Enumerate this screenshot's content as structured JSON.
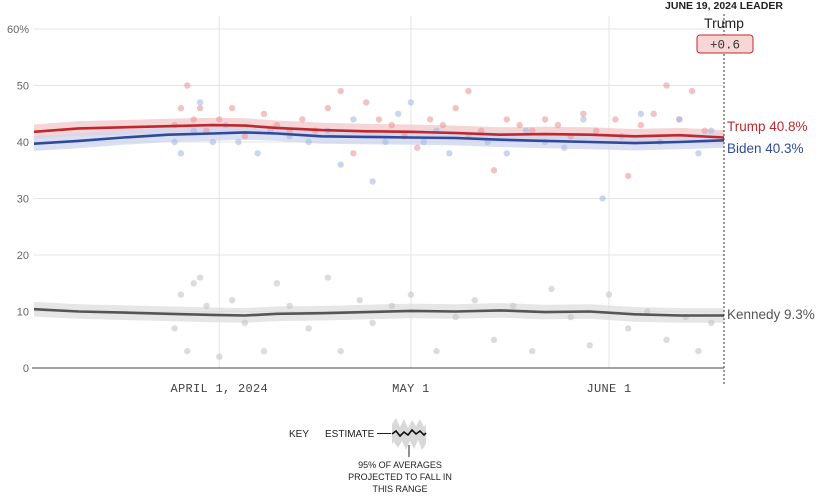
{
  "chart_data": {
    "type": "line",
    "ylim": [
      0,
      60
    ],
    "y_ticks": [
      0,
      10,
      20,
      30,
      40,
      50,
      60
    ],
    "y_tick_labels": [
      "0",
      "10",
      "20",
      "30",
      "40",
      "50",
      "60%"
    ],
    "x_range": [
      "2024-03-03",
      "2024-06-19"
    ],
    "x_ticks": [
      {
        "date": "2024-04-01",
        "label": "APRIL 1, 2024"
      },
      {
        "date": "2024-05-01",
        "label": "MAY 1"
      },
      {
        "date": "2024-06-01",
        "label": "JUNE 1"
      }
    ],
    "grid": true,
    "series": [
      {
        "name": "Trump",
        "end_label": "Trump 40.8%",
        "color": "#c0282d",
        "band_color": "#f2c7c8",
        "dot_color": "#e99a9c",
        "x": [
          "2024-03-03",
          "2024-03-10",
          "2024-03-17",
          "2024-03-24",
          "2024-03-31",
          "2024-04-05",
          "2024-04-10",
          "2024-04-17",
          "2024-04-24",
          "2024-05-01",
          "2024-05-08",
          "2024-05-15",
          "2024-05-22",
          "2024-05-29",
          "2024-06-05",
          "2024-06-12",
          "2024-06-19"
        ],
        "values": [
          41.8,
          42.4,
          42.6,
          42.8,
          43.0,
          42.9,
          42.5,
          42.1,
          41.9,
          41.8,
          41.6,
          41.3,
          41.4,
          41.3,
          41.0,
          41.2,
          40.8
        ],
        "polls": [
          {
            "x": "2024-03-25",
            "y": 43
          },
          {
            "x": "2024-03-26",
            "y": 46
          },
          {
            "x": "2024-03-27",
            "y": 50
          },
          {
            "x": "2024-03-28",
            "y": 44
          },
          {
            "x": "2024-03-29",
            "y": 46
          },
          {
            "x": "2024-03-30",
            "y": 42
          },
          {
            "x": "2024-04-01",
            "y": 44
          },
          {
            "x": "2024-04-03",
            "y": 46
          },
          {
            "x": "2024-04-05",
            "y": 41
          },
          {
            "x": "2024-04-08",
            "y": 45
          },
          {
            "x": "2024-04-10",
            "y": 43
          },
          {
            "x": "2024-04-12",
            "y": 42
          },
          {
            "x": "2024-04-14",
            "y": 44
          },
          {
            "x": "2024-04-16",
            "y": 42
          },
          {
            "x": "2024-04-18",
            "y": 46
          },
          {
            "x": "2024-04-20",
            "y": 49
          },
          {
            "x": "2024-04-22",
            "y": 38
          },
          {
            "x": "2024-04-24",
            "y": 47
          },
          {
            "x": "2024-04-26",
            "y": 44
          },
          {
            "x": "2024-04-28",
            "y": 43
          },
          {
            "x": "2024-04-30",
            "y": 41
          },
          {
            "x": "2024-05-02",
            "y": 39
          },
          {
            "x": "2024-05-04",
            "y": 44
          },
          {
            "x": "2024-05-06",
            "y": 43
          },
          {
            "x": "2024-05-08",
            "y": 46
          },
          {
            "x": "2024-05-10",
            "y": 49
          },
          {
            "x": "2024-05-12",
            "y": 42
          },
          {
            "x": "2024-05-14",
            "y": 35
          },
          {
            "x": "2024-05-16",
            "y": 44
          },
          {
            "x": "2024-05-18",
            "y": 43
          },
          {
            "x": "2024-05-20",
            "y": 42
          },
          {
            "x": "2024-05-22",
            "y": 44
          },
          {
            "x": "2024-05-24",
            "y": 43
          },
          {
            "x": "2024-05-26",
            "y": 41
          },
          {
            "x": "2024-05-28",
            "y": 45
          },
          {
            "x": "2024-05-30",
            "y": 42
          },
          {
            "x": "2024-06-02",
            "y": 44
          },
          {
            "x": "2024-06-04",
            "y": 34
          },
          {
            "x": "2024-06-06",
            "y": 43
          },
          {
            "x": "2024-06-08",
            "y": 45
          },
          {
            "x": "2024-06-10",
            "y": 50
          },
          {
            "x": "2024-06-12",
            "y": 44
          },
          {
            "x": "2024-06-14",
            "y": 49
          },
          {
            "x": "2024-06-16",
            "y": 42
          }
        ]
      },
      {
        "name": "Biden",
        "end_label": "Biden 40.3%",
        "color": "#2e4a9e",
        "band_color": "#cdd6ee",
        "dot_color": "#a9bbe3",
        "x": [
          "2024-03-03",
          "2024-03-10",
          "2024-03-17",
          "2024-03-24",
          "2024-03-31",
          "2024-04-05",
          "2024-04-10",
          "2024-04-17",
          "2024-04-24",
          "2024-05-01",
          "2024-05-08",
          "2024-05-15",
          "2024-05-22",
          "2024-05-29",
          "2024-06-05",
          "2024-06-12",
          "2024-06-19"
        ],
        "values": [
          39.7,
          40.2,
          40.8,
          41.3,
          41.5,
          41.7,
          41.5,
          41.0,
          40.9,
          40.8,
          40.7,
          40.4,
          40.2,
          40.0,
          39.8,
          40.0,
          40.3
        ],
        "polls": [
          {
            "x": "2024-03-25",
            "y": 40
          },
          {
            "x": "2024-03-26",
            "y": 38
          },
          {
            "x": "2024-03-28",
            "y": 42
          },
          {
            "x": "2024-03-29",
            "y": 47
          },
          {
            "x": "2024-03-31",
            "y": 40
          },
          {
            "x": "2024-04-02",
            "y": 43
          },
          {
            "x": "2024-04-04",
            "y": 40
          },
          {
            "x": "2024-04-07",
            "y": 38
          },
          {
            "x": "2024-04-09",
            "y": 42
          },
          {
            "x": "2024-04-12",
            "y": 41
          },
          {
            "x": "2024-04-15",
            "y": 40
          },
          {
            "x": "2024-04-18",
            "y": 42
          },
          {
            "x": "2024-04-20",
            "y": 36
          },
          {
            "x": "2024-04-22",
            "y": 44
          },
          {
            "x": "2024-04-25",
            "y": 33
          },
          {
            "x": "2024-04-27",
            "y": 40
          },
          {
            "x": "2024-04-29",
            "y": 45
          },
          {
            "x": "2024-05-01",
            "y": 47
          },
          {
            "x": "2024-05-03",
            "y": 40
          },
          {
            "x": "2024-05-05",
            "y": 42
          },
          {
            "x": "2024-05-07",
            "y": 38
          },
          {
            "x": "2024-05-10",
            "y": 41
          },
          {
            "x": "2024-05-13",
            "y": 40
          },
          {
            "x": "2024-05-16",
            "y": 38
          },
          {
            "x": "2024-05-19",
            "y": 42
          },
          {
            "x": "2024-05-22",
            "y": 40
          },
          {
            "x": "2024-05-25",
            "y": 39
          },
          {
            "x": "2024-05-28",
            "y": 44
          },
          {
            "x": "2024-05-31",
            "y": 30
          },
          {
            "x": "2024-06-03",
            "y": 41
          },
          {
            "x": "2024-06-06",
            "y": 45
          },
          {
            "x": "2024-06-09",
            "y": 40
          },
          {
            "x": "2024-06-12",
            "y": 44
          },
          {
            "x": "2024-06-15",
            "y": 38
          },
          {
            "x": "2024-06-17",
            "y": 42
          }
        ]
      },
      {
        "name": "Kennedy",
        "end_label": "Kennedy 9.3%",
        "color": "#555555",
        "band_color": "#dedede",
        "dot_color": "#c4c4c4",
        "x": [
          "2024-03-03",
          "2024-03-10",
          "2024-03-17",
          "2024-03-24",
          "2024-03-31",
          "2024-04-05",
          "2024-04-10",
          "2024-04-17",
          "2024-04-24",
          "2024-05-01",
          "2024-05-08",
          "2024-05-15",
          "2024-05-22",
          "2024-05-29",
          "2024-06-05",
          "2024-06-12",
          "2024-06-19"
        ],
        "values": [
          10.4,
          10.0,
          9.8,
          9.6,
          9.4,
          9.3,
          9.6,
          9.7,
          9.9,
          10.1,
          10.0,
          10.2,
          9.9,
          10.0,
          9.5,
          9.3,
          9.3
        ],
        "polls": [
          {
            "x": "2024-03-25",
            "y": 7
          },
          {
            "x": "2024-03-26",
            "y": 13
          },
          {
            "x": "2024-03-27",
            "y": 3
          },
          {
            "x": "2024-03-28",
            "y": 15
          },
          {
            "x": "2024-03-29",
            "y": 16
          },
          {
            "x": "2024-03-30",
            "y": 11
          },
          {
            "x": "2024-04-01",
            "y": 2
          },
          {
            "x": "2024-04-03",
            "y": 12
          },
          {
            "x": "2024-04-05",
            "y": 8
          },
          {
            "x": "2024-04-08",
            "y": 3
          },
          {
            "x": "2024-04-10",
            "y": 15
          },
          {
            "x": "2024-04-12",
            "y": 11
          },
          {
            "x": "2024-04-15",
            "y": 7
          },
          {
            "x": "2024-04-18",
            "y": 16
          },
          {
            "x": "2024-04-20",
            "y": 3
          },
          {
            "x": "2024-04-23",
            "y": 12
          },
          {
            "x": "2024-04-25",
            "y": 8
          },
          {
            "x": "2024-04-28",
            "y": 11
          },
          {
            "x": "2024-05-01",
            "y": 13
          },
          {
            "x": "2024-05-05",
            "y": 3
          },
          {
            "x": "2024-05-08",
            "y": 9
          },
          {
            "x": "2024-05-11",
            "y": 12
          },
          {
            "x": "2024-05-14",
            "y": 5
          },
          {
            "x": "2024-05-17",
            "y": 11
          },
          {
            "x": "2024-05-20",
            "y": 3
          },
          {
            "x": "2024-05-23",
            "y": 14
          },
          {
            "x": "2024-05-26",
            "y": 9
          },
          {
            "x": "2024-05-29",
            "y": 4
          },
          {
            "x": "2024-06-01",
            "y": 13
          },
          {
            "x": "2024-06-04",
            "y": 7
          },
          {
            "x": "2024-06-07",
            "y": 10
          },
          {
            "x": "2024-06-10",
            "y": 5
          },
          {
            "x": "2024-06-13",
            "y": 9
          },
          {
            "x": "2024-06-15",
            "y": 3
          },
          {
            "x": "2024-06-17",
            "y": 8
          }
        ]
      }
    ],
    "leader": {
      "title": "JUNE 19, 2024 LEADER",
      "name": "Trump",
      "margin": "+0.6",
      "badge_color": "#f9d6d6",
      "badge_border": "#c0282d"
    },
    "key": {
      "label": "KEY",
      "estimate_label": "ESTIMATE",
      "note_lines": [
        "95% OF AVERAGES",
        "PROJECTED TO FALL IN",
        "THIS RANGE"
      ]
    }
  }
}
